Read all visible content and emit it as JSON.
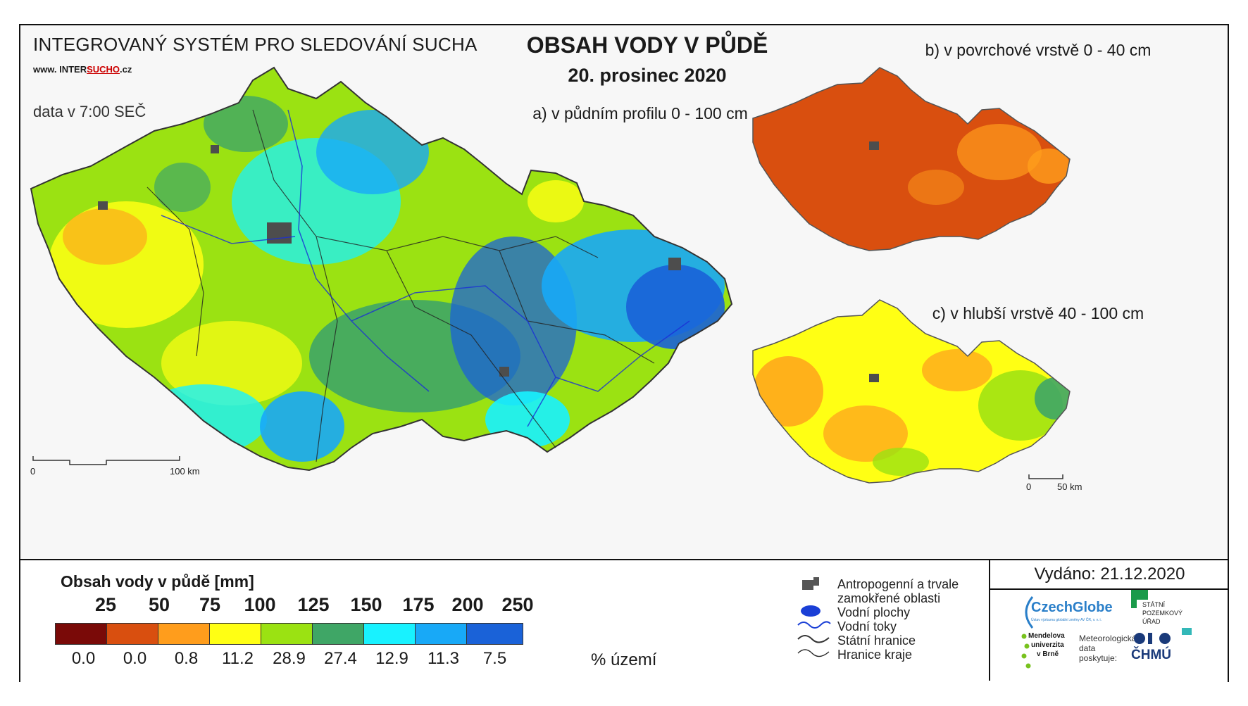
{
  "header": {
    "system_title": "INTEGROVANÝ SYSTÉM PRO SLEDOVÁNÍ SUCHA",
    "website_prefix": "www. INTER",
    "website_highlight": "SUCHO",
    "website_suffix": ".cz",
    "data_time": "data v 7:00 SEČ",
    "main_title": "OBSAH VODY V PŮDĚ",
    "date": "20. prosinec 2020"
  },
  "maps": {
    "a_title": "a) v půdním profilu 0 - 100 cm",
    "b_title": "b) v povrchové vrstvě 0 - 40 cm",
    "c_title": "c) v hlubší vrstvě 40 - 100 cm",
    "scale_a": {
      "start": "0",
      "end": "100 km"
    },
    "scale_c": {
      "start": "0",
      "end": "50 km"
    }
  },
  "legend": {
    "title": "Obsah vody v půdě  [mm]",
    "thresholds": [
      "25",
      "50",
      "75",
      "100",
      "125",
      "150",
      "175",
      "200",
      "250"
    ],
    "colors": [
      "#7a0a08",
      "#d94f0f",
      "#ff9d1c",
      "#ffff14",
      "#9be212",
      "#3fa666",
      "#18f2ff",
      "#18a9f7",
      "#1a62d8"
    ],
    "percentages": [
      "0.0",
      "0.0",
      "0.8",
      "11.2",
      "28.9",
      "27.4",
      "12.9",
      "11.3",
      "7.5"
    ],
    "percent_unit": "% území"
  },
  "symbols": {
    "anthropogenic": "Antropogenní a trvale",
    "anthropogenic_2": "zamokřené oblasti",
    "water_bodies": "Vodní plochy",
    "rivers": "Vodní toky",
    "state_border": "Státní hranice",
    "region_border": "Hranice kraje"
  },
  "issued": "Vydáno: 21.12.2020",
  "logos": {
    "czechglobe": "CzechGlobe",
    "czechglobe_sub": "Ústav výzkumu globální změny AV ČR, v. v. i.",
    "spu_1": "STÁTNÍ",
    "spu_2": "POZEMKOVÝ",
    "spu_3": "ÚŘAD",
    "mendel_1": "Mendelova",
    "mendel_2": "univerzita",
    "mendel_3": "v Brně",
    "meteo_1": "Meteorologická",
    "meteo_2": "data",
    "meteo_3": "poskytuje:",
    "chmu": "ČHMÚ"
  }
}
